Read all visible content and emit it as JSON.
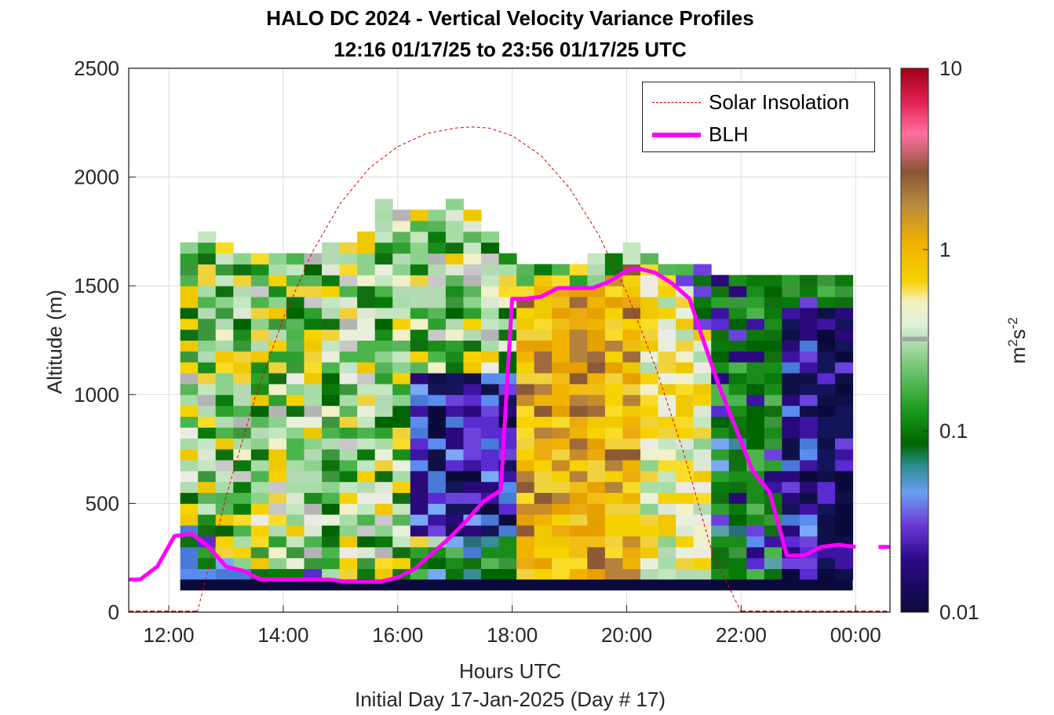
{
  "title": {
    "line1": "HALO DC 2024 - Vertical Velocity Variance Profiles",
    "line2": "12:16 01/17/25 to 23:56 01/17/25  UTC"
  },
  "axes": {
    "xlabel": "Hours UTC",
    "xsub": "Initial Day 17-Jan-2025 (Day # 17)",
    "ylabel": "Altitude (m)",
    "colorbar_label_base": "m",
    "colorbar_label_exp1": "2",
    "colorbar_label_mid": "s",
    "colorbar_label_exp2": "-2"
  },
  "legend": {
    "solar": "Solar Insolation",
    "blh": "BLH"
  },
  "colors": {
    "blh": "#ff00ff",
    "solar": "#e00000",
    "background_fill": "#0a0a3c"
  },
  "chart_data": {
    "type": "heatmap",
    "title": "HALO DC 2024 - Vertical Velocity Variance Profiles",
    "xlabel": "Hours UTC",
    "ylabel": "Altitude (m)",
    "xlim": [
      11.3,
      24.6
    ],
    "ylim": [
      0,
      2500
    ],
    "x_ticks": [
      12,
      14,
      16,
      18,
      20,
      22,
      24
    ],
    "x_tick_labels": [
      "12:00",
      "14:00",
      "16:00",
      "18:00",
      "20:00",
      "22:00",
      "00:00"
    ],
    "y_ticks": [
      0,
      500,
      1000,
      1500,
      2000,
      2500
    ],
    "y_tick_labels": [
      "0",
      "500",
      "1000",
      "1500",
      "2000",
      "2500"
    ],
    "colorbar": {
      "scale": "log",
      "range": [
        0.01,
        10
      ],
      "ticks": [
        0.01,
        0.1,
        1,
        10
      ],
      "tick_labels": [
        "0.01",
        "0.1",
        "1",
        "10"
      ]
    },
    "grid": true,
    "legend_position": "top-right",
    "variance_column_tops_m": [
      1680,
      1720,
      1680,
      1620,
      1620,
      1620,
      1620,
      1620,
      1680,
      1680,
      1730,
      1870,
      1820,
      1820,
      1820,
      1870,
      1820,
      1730,
      1630,
      1560,
      1560,
      1560,
      1560,
      1630,
      1630,
      1680,
      1630,
      1580,
      1580,
      1560,
      1530,
      1530,
      1530,
      1530,
      1530,
      1530,
      1530,
      1530
    ],
    "series": [
      {
        "name": "BLH",
        "x": [
          11.3,
          11.5,
          11.8,
          12.1,
          12.4,
          12.7,
          13.0,
          13.3,
          13.6,
          13.9,
          14.2,
          14.5,
          14.8,
          15.1,
          15.4,
          15.7,
          16.0,
          16.3,
          16.6,
          16.9,
          17.2,
          17.5,
          17.8,
          18.0,
          18.2,
          18.5,
          18.8,
          19.1,
          19.4,
          19.7,
          20.0,
          20.2,
          20.5,
          20.8,
          21.1,
          21.3,
          21.6,
          21.9,
          22.2,
          22.5,
          22.8,
          23.1,
          23.4,
          23.7,
          24.0,
          24.2,
          24.5
        ],
        "y": [
          150,
          150,
          210,
          350,
          360,
          300,
          210,
          190,
          150,
          150,
          150,
          150,
          150,
          140,
          140,
          140,
          160,
          200,
          270,
          340,
          420,
          510,
          560,
          1440,
          1440,
          1450,
          1490,
          1490,
          1490,
          1520,
          1570,
          1580,
          1560,
          1510,
          1440,
          1280,
          1050,
          850,
          650,
          550,
          260,
          260,
          300,
          310,
          300,
          300,
          300
        ]
      },
      {
        "name": "Solar Insolation",
        "x": [
          12.5,
          13.0,
          13.5,
          14.0,
          14.5,
          15.0,
          15.5,
          16.0,
          16.5,
          17.0,
          17.3,
          17.6,
          18.0,
          18.5,
          19.0,
          19.5,
          20.0,
          20.5,
          21.0,
          21.5,
          22.0
        ],
        "y": [
          0,
          530,
          980,
          1350,
          1650,
          1880,
          2040,
          2140,
          2200,
          2225,
          2230,
          2225,
          2190,
          2100,
          1950,
          1740,
          1470,
          1130,
          730,
          270,
          0
        ]
      }
    ]
  }
}
